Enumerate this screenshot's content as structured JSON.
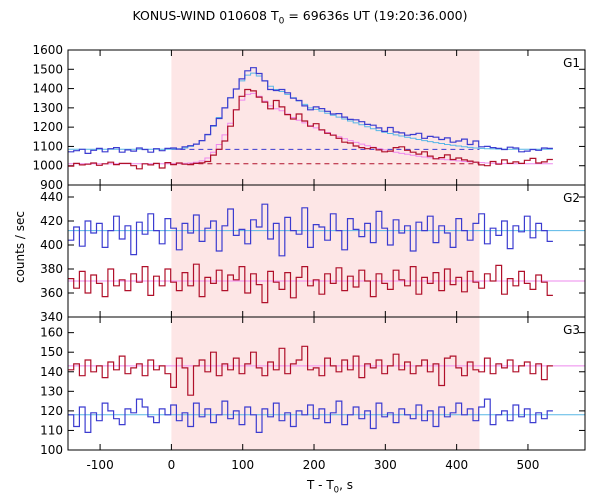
{
  "title": {
    "prefix": "KONUS-WIND 010608 T",
    "sub": "0",
    "suffix": " = 69636s UT (19:20:36.000)"
  },
  "ylabel": "counts / sec",
  "xlabel": {
    "prefix": "T - T",
    "sub": "0",
    "suffix": ", s"
  },
  "colors": {
    "blue": "#3c3cd0",
    "red": "#b0102a",
    "fit_blue": "#58b7e6",
    "fit_red": "#ee88ee",
    "shade": "#fde6e6"
  },
  "chart_data": {
    "type": "line",
    "xlim": [
      -145,
      580
    ],
    "x_ticks": [
      -100,
      0,
      100,
      200,
      300,
      400,
      500
    ],
    "shaded_interval": [
      0,
      432
    ],
    "step": 8,
    "panels": [
      {
        "name": "G1",
        "ylim": [
          900,
          1600
        ],
        "y_ticks": [
          900,
          1000,
          1100,
          1200,
          1300,
          1400,
          1500,
          1600
        ],
        "background_levels": [
          {
            "series": "blue",
            "value": 1085
          },
          {
            "series": "red",
            "value": 1010
          }
        ],
        "series": [
          {
            "color": "blue",
            "values": [
              1072,
              1078,
              1085,
              1064,
              1080,
              1090,
              1072,
              1088,
              1094,
              1070,
              1082,
              1076,
              1092,
              1084,
              1070,
              1088,
              1078,
              1090,
              1092,
              1086,
              1098,
              1104,
              1112,
              1130,
              1162,
              1208,
              1245,
              1300,
              1352,
              1398,
              1450,
              1492,
              1508,
              1478,
              1440,
              1395,
              1390,
              1395,
              1378,
              1350,
              1338,
              1310,
              1290,
              1305,
              1296,
              1282,
              1268,
              1270,
              1252,
              1240,
              1238,
              1228,
              1214,
              1210,
              1196,
              1178,
              1198,
              1175,
              1170,
              1158,
              1162,
              1168,
              1142,
              1152,
              1148,
              1136,
              1144,
              1122,
              1128,
              1138,
              1110,
              1128,
              1098,
              1100,
              1094,
              1090,
              1084,
              1096,
              1092,
              1072,
              1076,
              1084,
              1080,
              1092,
              1090
            ]
          },
          {
            "color": "red",
            "values": [
              998,
              1012,
              1004,
              1008,
              1014,
              1002,
              1010,
              1018,
              1006,
              1012,
              1012,
              1000,
              984,
              1010,
              1004,
              1012,
              988,
              1016,
              1006,
              1014,
              1008,
              1006,
              1012,
              1015,
              1022,
              1055,
              1085,
              1128,
              1205,
              1290,
              1360,
              1395,
              1388,
              1356,
              1330,
              1295,
              1338,
              1305,
              1265,
              1242,
              1268,
              1232,
              1205,
              1218,
              1186,
              1168,
              1158,
              1142,
              1122,
              1118,
              1102,
              1094,
              1088,
              1094,
              1082,
              1072,
              1076,
              1094,
              1098,
              1080,
              1070,
              1060,
              1072,
              1050,
              1036,
              1042,
              1056,
              1032,
              1040,
              1030,
              1024,
              1018,
              1004,
              1000,
              1022,
              1008,
              1030,
              1012,
              1020,
              1012,
              1028,
              1038,
              1014,
              1020,
              1032
            ]
          }
        ],
        "fits": [
          {
            "color": "fit_blue",
            "values": [
              1085,
              1085,
              1085,
              1085,
              1085,
              1085,
              1085,
              1085,
              1085,
              1085,
              1085,
              1085,
              1085,
              1085,
              1085,
              1085,
              1085,
              1085,
              1086,
              1088,
              1092,
              1100,
              1112,
              1130,
              1160,
              1205,
              1250,
              1300,
              1352,
              1398,
              1440,
              1470,
              1480,
              1465,
              1440,
              1412,
              1395,
              1385,
              1370,
              1352,
              1336,
              1318,
              1300,
              1292,
              1283,
              1272,
              1262,
              1252,
              1242,
              1232,
              1222,
              1212,
              1202,
              1192,
              1182,
              1174,
              1167,
              1160,
              1154,
              1148,
              1142,
              1136,
              1130,
              1125,
              1120,
              1115,
              1110,
              1106,
              1102,
              1098,
              1095,
              1092,
              1090,
              1088,
              1087,
              1086,
              1086,
              1085,
              1085,
              1085,
              1085,
              1085,
              1085,
              1085,
              1085
            ]
          },
          {
            "color": "fit_red",
            "values": [
              1010,
              1010,
              1010,
              1010,
              1010,
              1010,
              1010,
              1010,
              1010,
              1010,
              1010,
              1010,
              1010,
              1010,
              1010,
              1010,
              1010,
              1010,
              1010,
              1011,
              1012,
              1014,
              1018,
              1025,
              1040,
              1070,
              1110,
              1160,
              1220,
              1290,
              1340,
              1370,
              1375,
              1360,
              1335,
              1310,
              1295,
              1285,
              1268,
              1250,
              1236,
              1222,
              1208,
              1196,
              1184,
              1172,
              1160,
              1150,
              1140,
              1130,
              1121,
              1112,
              1104,
              1096,
              1089,
              1082,
              1076,
              1070,
              1064,
              1059,
              1054,
              1049,
              1045,
              1041,
              1037,
              1034,
              1031,
              1028,
              1025,
              1022,
              1020,
              1018,
              1016,
              1014,
              1013,
              1012,
              1011,
              1010,
              1010,
              1010,
              1010,
              1010,
              1010,
              1010,
              1010
            ]
          }
        ]
      },
      {
        "name": "G2",
        "ylim": [
          340,
          450
        ],
        "y_ticks": [
          340,
          360,
          380,
          400,
          420,
          440
        ],
        "fits": [
          {
            "color": "fit_blue",
            "level": 412
          },
          {
            "color": "fit_red",
            "level": 370
          }
        ],
        "series": [
          {
            "color": "blue",
            "values": [
              404,
              415,
              399,
              420,
              410,
              418,
              398,
              412,
              424,
              405,
              416,
              392,
              419,
              409,
              426,
              412,
              401,
              422,
              414,
              396,
              418,
              410,
              425,
              403,
              414,
              420,
              395,
              416,
              430,
              408,
              413,
              401,
              421,
              415,
              434,
              405,
              418,
              391,
              423,
              412,
              409,
              431,
              398,
              417,
              415,
              404,
              426,
              412,
              396,
              422,
              413,
              407,
              418,
              402,
              428,
              414,
              400,
              421,
              410,
              416,
              395,
              419,
              412,
              424,
              402,
              416,
              410,
              398,
              422,
              412,
              404,
              418,
              426,
              401,
              414,
              408,
              420,
              397,
              416,
              411,
              424,
              406,
              418,
              412,
              403
            ]
          },
          {
            "color": "red",
            "values": [
              372,
              364,
              378,
              360,
              375,
              368,
              357,
              380,
              366,
              371,
              362,
              376,
              369,
              382,
              358,
              374,
              366,
              380,
              369,
              362,
              377,
              366,
              384,
              357,
              373,
              368,
              379,
              362,
              375,
              371,
              382,
              360,
              376,
              367,
              352,
              378,
              369,
              363,
              377,
              356,
              373,
              382,
              366,
              371,
              359,
              376,
              368,
              381,
              362,
              374,
              365,
              379,
              370,
              357,
              376,
              368,
              363,
              379,
              371,
              366,
              382,
              359,
              373,
              368,
              377,
              362,
              380,
              367,
              373,
              361,
              378,
              369,
              364,
              376,
              370,
              383,
              359,
              372,
              366,
              378,
              368,
              363,
              375,
              369,
              358
            ]
          }
        ]
      },
      {
        "name": "G3",
        "ylim": [
          100,
          168
        ],
        "y_ticks": [
          100,
          110,
          120,
          130,
          140,
          150,
          160
        ],
        "fits": [
          {
            "color": "fit_blue",
            "level": 118
          },
          {
            "color": "fit_red",
            "level": 143
          }
        ],
        "series": [
          {
            "color": "red",
            "values": [
              141,
              144,
              138,
              146,
              140,
              143,
              137,
              145,
              141,
              148,
              139,
              142,
              144,
              138,
              146,
              141,
              143,
              139,
              132,
              147,
              142,
              128,
              143,
              146,
              140,
              150,
              138,
              144,
              141,
              147,
              139,
              144,
              150,
              142,
              138,
              145,
              141,
              152,
              139,
              144,
              146,
              153,
              141,
              142,
              138,
              147,
              143,
              140,
              146,
              141,
              148,
              137,
              144,
              142,
              146,
              139,
              143,
              149,
              141,
              145,
              139,
              143,
              146,
              140,
              144,
              133,
              147,
              148,
              142,
              138,
              145,
              141,
              140,
              147,
              139,
              144,
              142,
              146,
              140,
              143,
              145,
              139,
              144,
              136,
              143
            ]
          },
          {
            "color": "blue",
            "values": [
              118,
              112,
              122,
              109,
              119,
              115,
              124,
              120,
              116,
              113,
              121,
              119,
              126,
              122,
              117,
              114,
              121,
              118,
              123,
              115,
              119,
              112,
              124,
              117,
              121,
              114,
              118,
              125,
              116,
              120,
              113,
              122,
              118,
              109,
              121,
              117,
              124,
              115,
              119,
              112,
              120,
              118,
              123,
              116,
              121,
              114,
              119,
              125,
              113,
              118,
              122,
              116,
              120,
              111,
              124,
              117,
              119,
              114,
              121,
              118,
              116,
              123,
              115,
              120,
              112,
              122,
              117,
              119,
              124,
              118,
              121,
              115,
              122,
              126,
              113,
              118,
              120,
              115,
              123,
              117,
              121,
              114,
              119,
              116,
              120
            ]
          }
        ]
      }
    ]
  }
}
